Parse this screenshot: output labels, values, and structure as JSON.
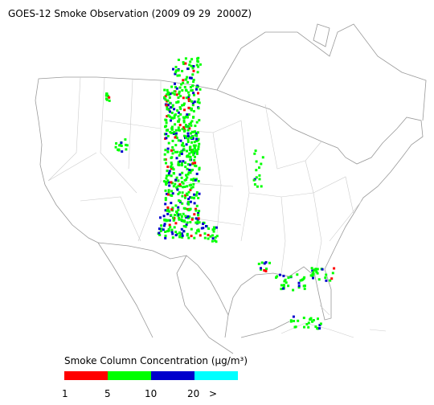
{
  "title": "GOES-12 Smoke Observation (2009 09 29  2000Z)",
  "legend": {
    "title": "Smoke Column Concentration (μg/m³)",
    "colors": [
      "#ff0000",
      "#00ff00",
      "#0000cc",
      "#00ffff"
    ],
    "labels": [
      "1",
      "5",
      "10",
      "20",
      ">"
    ]
  }
}
